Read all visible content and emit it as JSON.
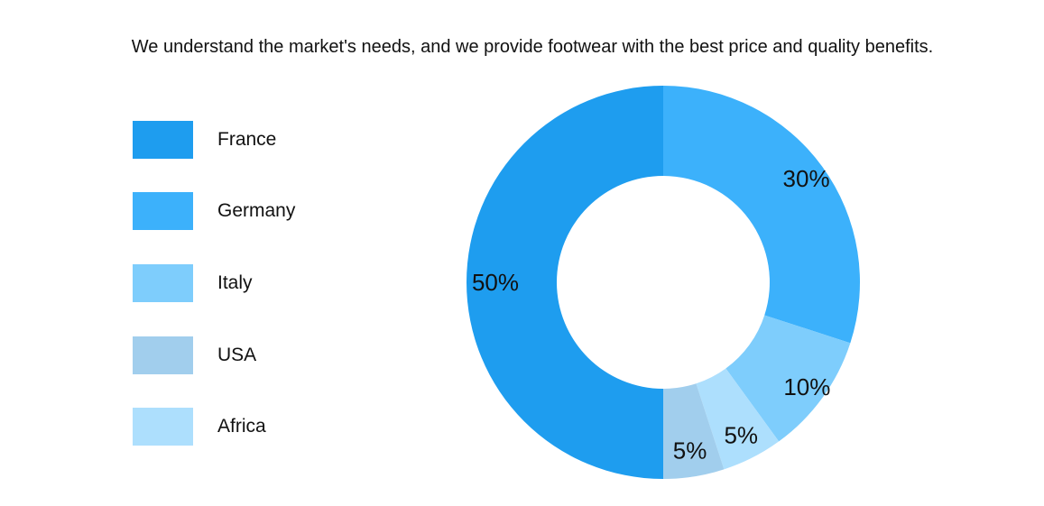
{
  "chart_data": {
    "type": "pie",
    "variant": "donut",
    "title": "We understand the market's needs, and we provide footwear with the best price and quality benefits.",
    "categories": [
      "France",
      "Germany",
      "Italy",
      "USA",
      "Africa"
    ],
    "values": [
      50,
      30,
      10,
      5,
      5
    ],
    "labels": [
      "50%",
      "30%",
      "10%",
      "5%",
      "5%"
    ],
    "colors": [
      "#1e9def",
      "#3cb1fb",
      "#7ecdfc",
      "#a1ceed",
      "#addffd"
    ],
    "label_colors": [
      "#111111",
      "#111111",
      "#111111",
      "#111111",
      "#111111"
    ],
    "draw_order": [
      "Germany",
      "Italy",
      "Africa",
      "USA",
      "France"
    ],
    "start_angle": "top",
    "direction": "clockwise",
    "legend_position": "left"
  }
}
